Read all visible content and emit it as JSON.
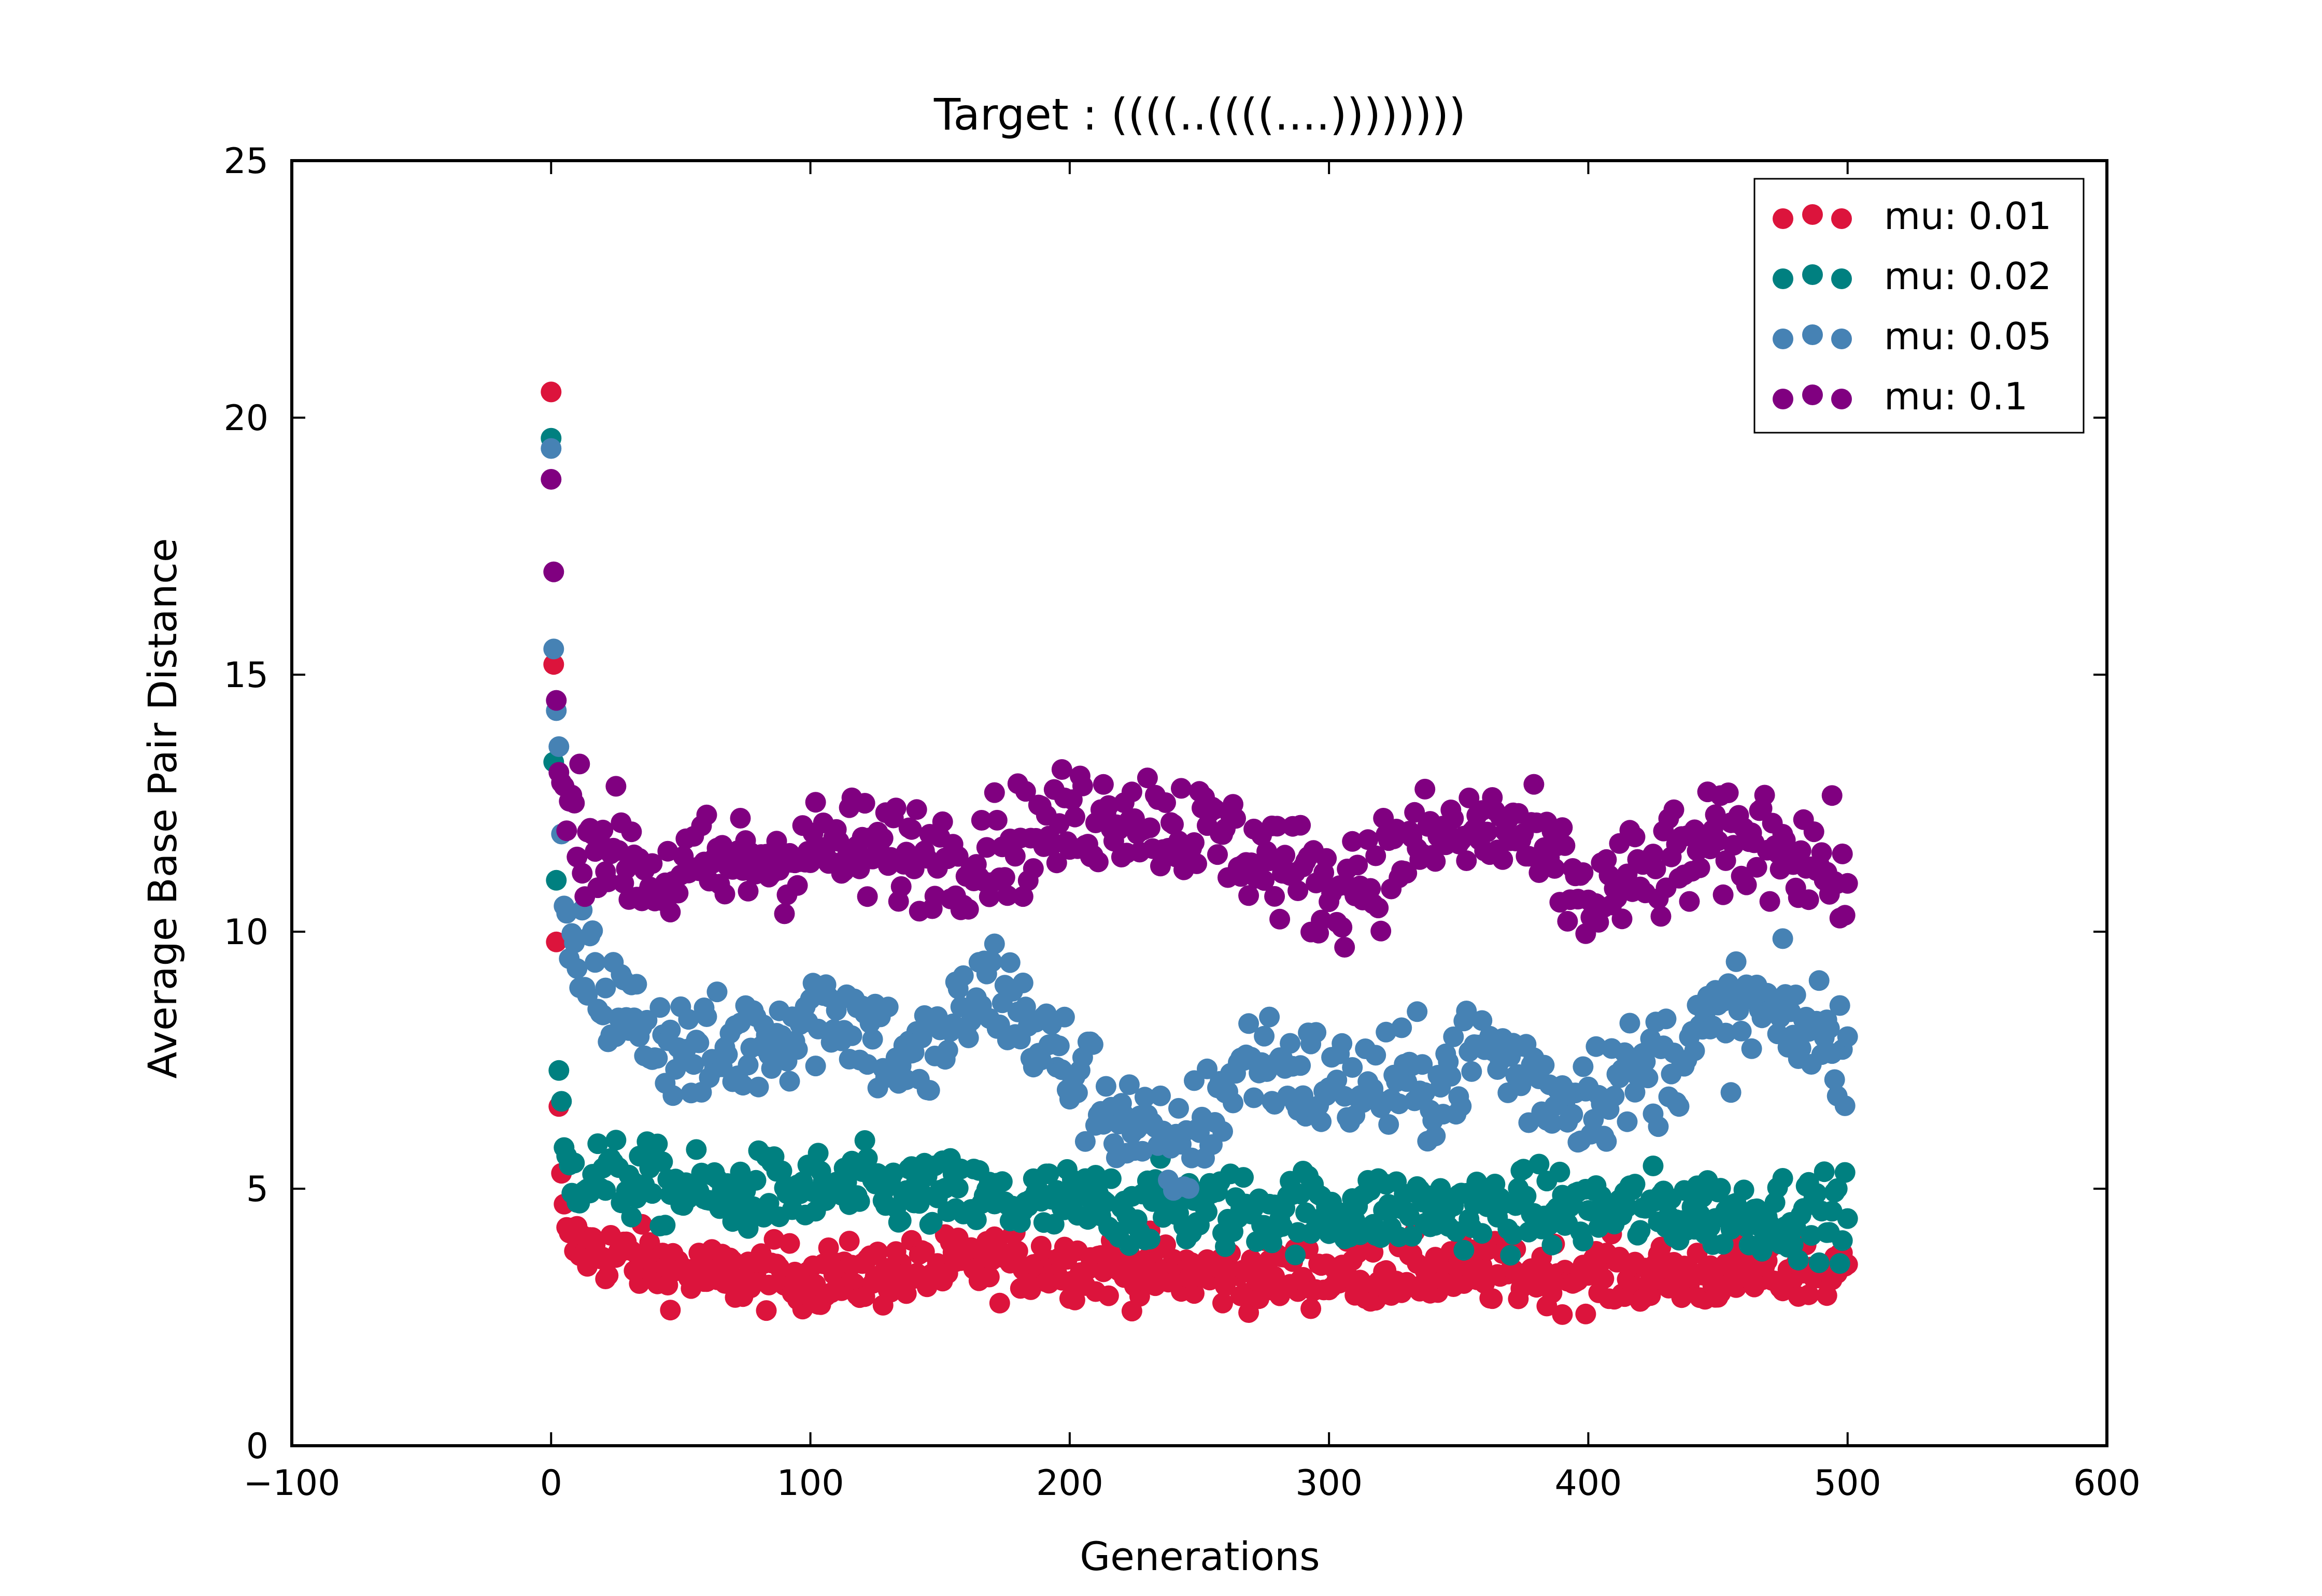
{
  "chart_data": {
    "type": "scatter",
    "title": "Target : ((((..((((....))))))))",
    "xlabel": "Generations",
    "ylabel": "Average Base Pair Distance",
    "xlim": [
      -100,
      600
    ],
    "ylim": [
      0,
      25
    ],
    "xticks": [
      "−100",
      "0",
      "100",
      "200",
      "300",
      "400",
      "500",
      "600"
    ],
    "yticks": [
      "0",
      "5",
      "10",
      "15",
      "20",
      "25"
    ],
    "grid": false,
    "legend": "top-right",
    "series": [
      {
        "name": "mu: 0.01",
        "color": "#dc143c",
        "start": [
          20.5,
          15.2,
          9.8,
          6.6,
          5.3,
          4.7
        ],
        "levels": [
          [
            0,
            4.0
          ],
          [
            60,
            3.3
          ],
          [
            120,
            3.3
          ],
          [
            180,
            3.6
          ],
          [
            260,
            3.3
          ],
          [
            340,
            3.4
          ],
          [
            420,
            3.3
          ],
          [
            500,
            3.4
          ]
        ],
        "spread": 0.45
      },
      {
        "name": "mu: 0.02",
        "color": "#008080",
        "start": [
          19.6,
          13.3,
          11.0,
          7.3,
          6.7,
          5.8
        ],
        "levels": [
          [
            0,
            5.4
          ],
          [
            60,
            4.9
          ],
          [
            120,
            5.0
          ],
          [
            180,
            4.7
          ],
          [
            260,
            4.6
          ],
          [
            340,
            4.6
          ],
          [
            420,
            4.6
          ],
          [
            500,
            4.5
          ]
        ],
        "spread": 0.55
      },
      {
        "name": "mu: 0.05",
        "color": "#4682b4",
        "start": [
          19.4,
          15.5,
          14.3,
          13.6,
          11.9,
          10.5
        ],
        "levels": [
          [
            0,
            10.0
          ],
          [
            30,
            8.3
          ],
          [
            60,
            7.5
          ],
          [
            110,
            8.6
          ],
          [
            140,
            7.3
          ],
          [
            170,
            9.0
          ],
          [
            200,
            7.3
          ],
          [
            240,
            5.5
          ],
          [
            270,
            7.6
          ],
          [
            300,
            7.0
          ],
          [
            340,
            7.0
          ],
          [
            360,
            7.8
          ],
          [
            390,
            6.8
          ],
          [
            420,
            7.2
          ],
          [
            460,
            8.5
          ],
          [
            500,
            7.8
          ]
        ],
        "spread": 0.8
      },
      {
        "name": "mu: 0.1",
        "color": "#800080",
        "start": [
          18.8,
          17.0,
          14.5,
          13.1,
          12.9
        ],
        "levels": [
          [
            0,
            12.5
          ],
          [
            40,
            11.0
          ],
          [
            100,
            11.6
          ],
          [
            160,
            11.5
          ],
          [
            220,
            12.4
          ],
          [
            260,
            11.8
          ],
          [
            300,
            10.8
          ],
          [
            340,
            11.8
          ],
          [
            370,
            12.0
          ],
          [
            400,
            10.6
          ],
          [
            440,
            11.5
          ],
          [
            470,
            11.9
          ],
          [
            500,
            11.0
          ]
        ],
        "spread": 0.75
      }
    ]
  }
}
